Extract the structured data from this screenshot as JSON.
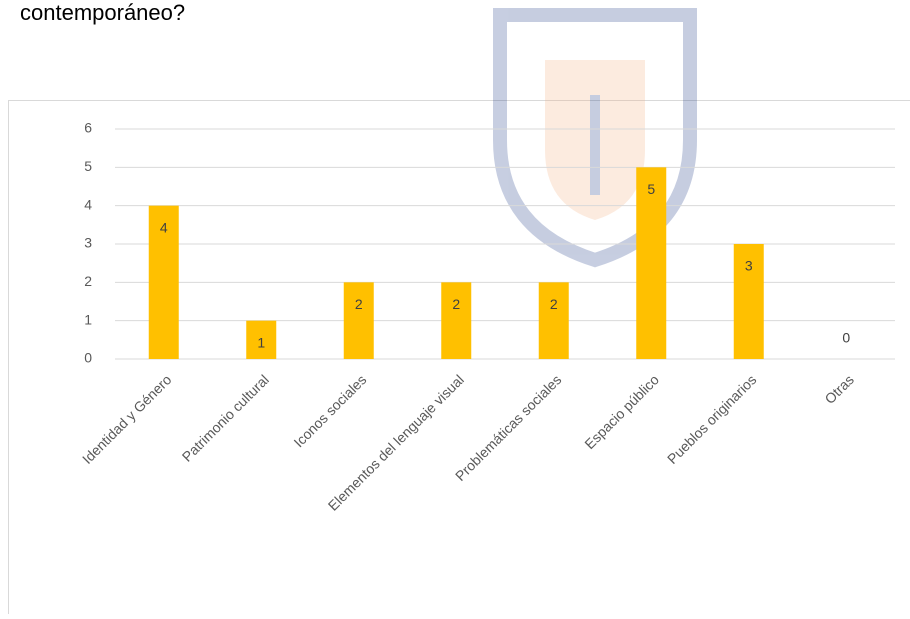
{
  "question": "contemporáneo?",
  "chart_data": {
    "type": "bar",
    "categories": [
      "Identidad y Género",
      "Patrimonio cultural",
      "Iconos sociales",
      "Elementos del lenguaje visual",
      "Problemáticas sociales",
      "Espacio público",
      "Pueblos originarios",
      "Otras"
    ],
    "values": [
      4,
      1,
      2,
      2,
      2,
      5,
      3,
      0
    ],
    "color": "#ffc000",
    "ylim": [
      0,
      6
    ],
    "yticks": [
      0,
      1,
      2,
      3,
      4,
      5,
      6
    ],
    "grid": true
  }
}
